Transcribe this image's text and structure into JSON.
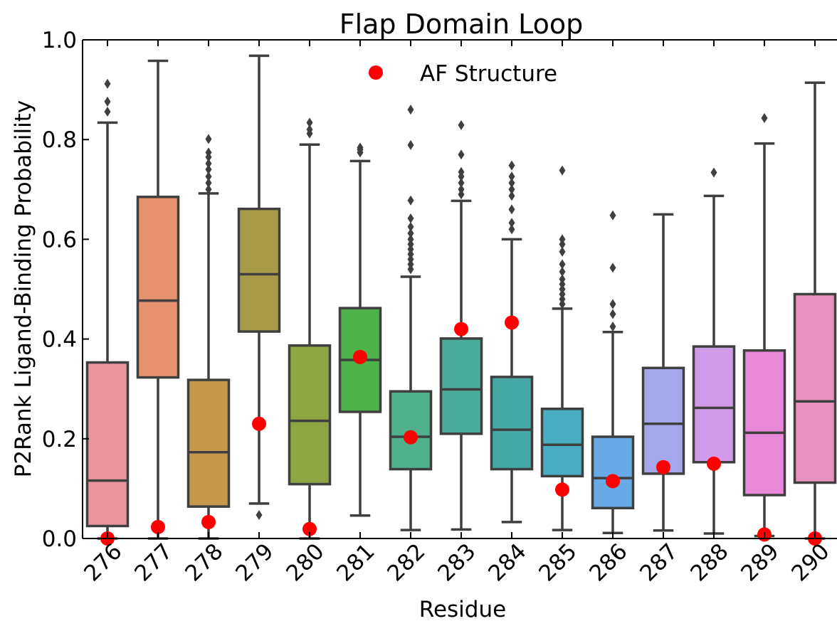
{
  "chart_data": {
    "type": "box",
    "title": "Flap Domain Loop",
    "xlabel": "Residue",
    "ylabel": "P2Rank Ligand-Binding Probability",
    "ylim": [
      0.0,
      1.0
    ],
    "yticks": [
      0.0,
      0.2,
      0.4,
      0.6,
      0.8,
      1.0
    ],
    "ytick_labels": [
      "0.0",
      "0.2",
      "0.4",
      "0.6",
      "0.8",
      "1.0"
    ],
    "grid": false,
    "legend": {
      "position": "top-center",
      "entries": [
        {
          "label": "AF Structure",
          "color": "#ff0000",
          "marker": "circle"
        }
      ]
    },
    "categories": [
      "276",
      "277",
      "278",
      "279",
      "280",
      "281",
      "282",
      "283",
      "284",
      "285",
      "286",
      "287",
      "288",
      "289",
      "290"
    ],
    "boxes": [
      {
        "color": "#e8949f",
        "whisker_low": 0.0,
        "q1": 0.025,
        "median": 0.116,
        "q3": 0.353,
        "whisker_high": 0.834,
        "outliers": [
          0.856,
          0.876,
          0.912
        ]
      },
      {
        "color": "#e6926f",
        "whisker_low": 0.0,
        "q1": 0.323,
        "median": 0.477,
        "q3": 0.685,
        "whisker_high": 0.958,
        "outliers": []
      },
      {
        "color": "#c6984d",
        "whisker_low": 0.0,
        "q1": 0.064,
        "median": 0.173,
        "q3": 0.318,
        "whisker_high": 0.692,
        "outliers": [
          0.7,
          0.713,
          0.726,
          0.74,
          0.752,
          0.765,
          0.774,
          0.801
        ]
      },
      {
        "color": "#a89b48",
        "whisker_low": 0.07,
        "q1": 0.415,
        "median": 0.53,
        "q3": 0.661,
        "whisker_high": 0.968,
        "outliers": [
          0.047
        ]
      },
      {
        "color": "#8ea544",
        "whisker_low": 0.0,
        "q1": 0.109,
        "median": 0.236,
        "q3": 0.387,
        "whisker_high": 0.79,
        "outliers": [
          0.812,
          0.82,
          0.834
        ]
      },
      {
        "color": "#4fb14a",
        "whisker_low": 0.046,
        "q1": 0.254,
        "median": 0.358,
        "q3": 0.462,
        "whisker_high": 0.757,
        "outliers": [
          0.774,
          0.78,
          0.784
        ]
      },
      {
        "color": "#4fb08b",
        "whisker_low": 0.017,
        "q1": 0.139,
        "median": 0.204,
        "q3": 0.295,
        "whisker_high": 0.525,
        "outliers": [
          0.54,
          0.55,
          0.56,
          0.57,
          0.58,
          0.59,
          0.6,
          0.612,
          0.625,
          0.642,
          0.678,
          0.789,
          0.86
        ]
      },
      {
        "color": "#4aab98",
        "whisker_low": 0.018,
        "q1": 0.21,
        "median": 0.299,
        "q3": 0.401,
        "whisker_high": 0.677,
        "outliers": [
          0.69,
          0.7,
          0.713,
          0.726,
          0.735,
          0.77,
          0.829
        ]
      },
      {
        "color": "#46a8a4",
        "whisker_low": 0.033,
        "q1": 0.139,
        "median": 0.218,
        "q3": 0.324,
        "whisker_high": 0.6,
        "outliers": [
          0.62,
          0.633,
          0.66,
          0.687,
          0.7,
          0.713,
          0.726,
          0.748
        ]
      },
      {
        "color": "#4aacc3",
        "whisker_low": 0.017,
        "q1": 0.125,
        "median": 0.188,
        "q3": 0.26,
        "whisker_high": 0.461,
        "outliers": [
          0.47,
          0.48,
          0.49,
          0.5,
          0.51,
          0.52,
          0.535,
          0.55,
          0.575,
          0.59,
          0.6,
          0.738
        ]
      },
      {
        "color": "#67aae6",
        "whisker_low": 0.011,
        "q1": 0.061,
        "median": 0.121,
        "q3": 0.204,
        "whisker_high": 0.414,
        "outliers": [
          0.425,
          0.45,
          0.47,
          0.543,
          0.648
        ]
      },
      {
        "color": "#a4a7ea",
        "whisker_low": 0.016,
        "q1": 0.13,
        "median": 0.23,
        "q3": 0.342,
        "whisker_high": 0.65,
        "outliers": []
      },
      {
        "color": "#d09ae8",
        "whisker_low": 0.01,
        "q1": 0.153,
        "median": 0.262,
        "q3": 0.385,
        "whisker_high": 0.687,
        "outliers": [
          0.734
        ]
      },
      {
        "color": "#e788d8",
        "whisker_low": 0.005,
        "q1": 0.087,
        "median": 0.212,
        "q3": 0.377,
        "whisker_high": 0.792,
        "outliers": [
          0.843
        ]
      },
      {
        "color": "#e890be",
        "whisker_low": 0.0,
        "q1": 0.112,
        "median": 0.275,
        "q3": 0.49,
        "whisker_high": 0.914,
        "outliers": []
      }
    ],
    "af_structure": [
      0.0,
      0.023,
      0.033,
      0.23,
      0.019,
      0.364,
      0.203,
      0.42,
      0.433,
      0.098,
      0.115,
      0.143,
      0.15,
      0.008,
      0.0
    ]
  }
}
